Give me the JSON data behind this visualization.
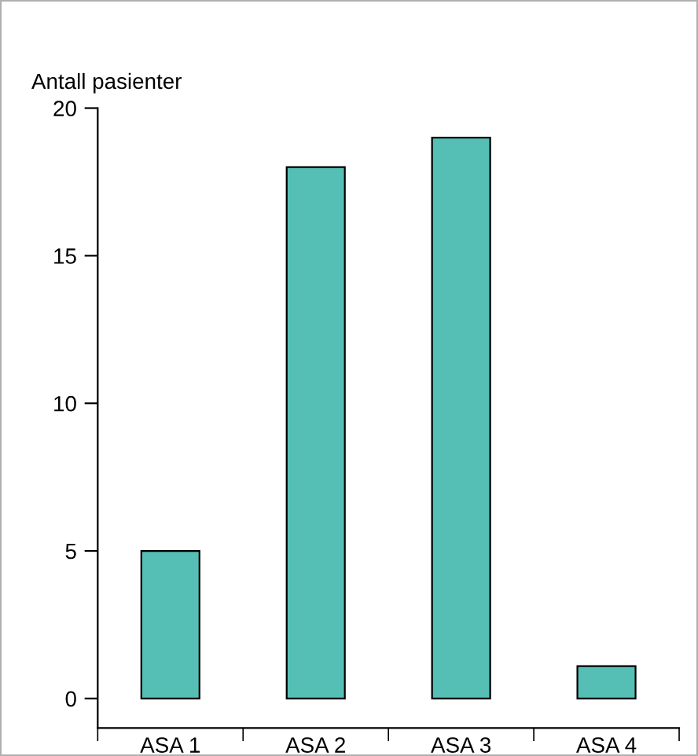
{
  "chart_data": {
    "type": "bar",
    "ylabel": "Antall pasienter",
    "categories": [
      "ASA 1",
      "ASA 2",
      "ASA 3",
      "ASA 4"
    ],
    "values": [
      5,
      18,
      19,
      1.1
    ],
    "color": "#55bfb5",
    "ylim": [
      -1,
      20
    ],
    "yticks": [
      0,
      5,
      10,
      15,
      20
    ],
    "grid": false,
    "legend": false
  }
}
